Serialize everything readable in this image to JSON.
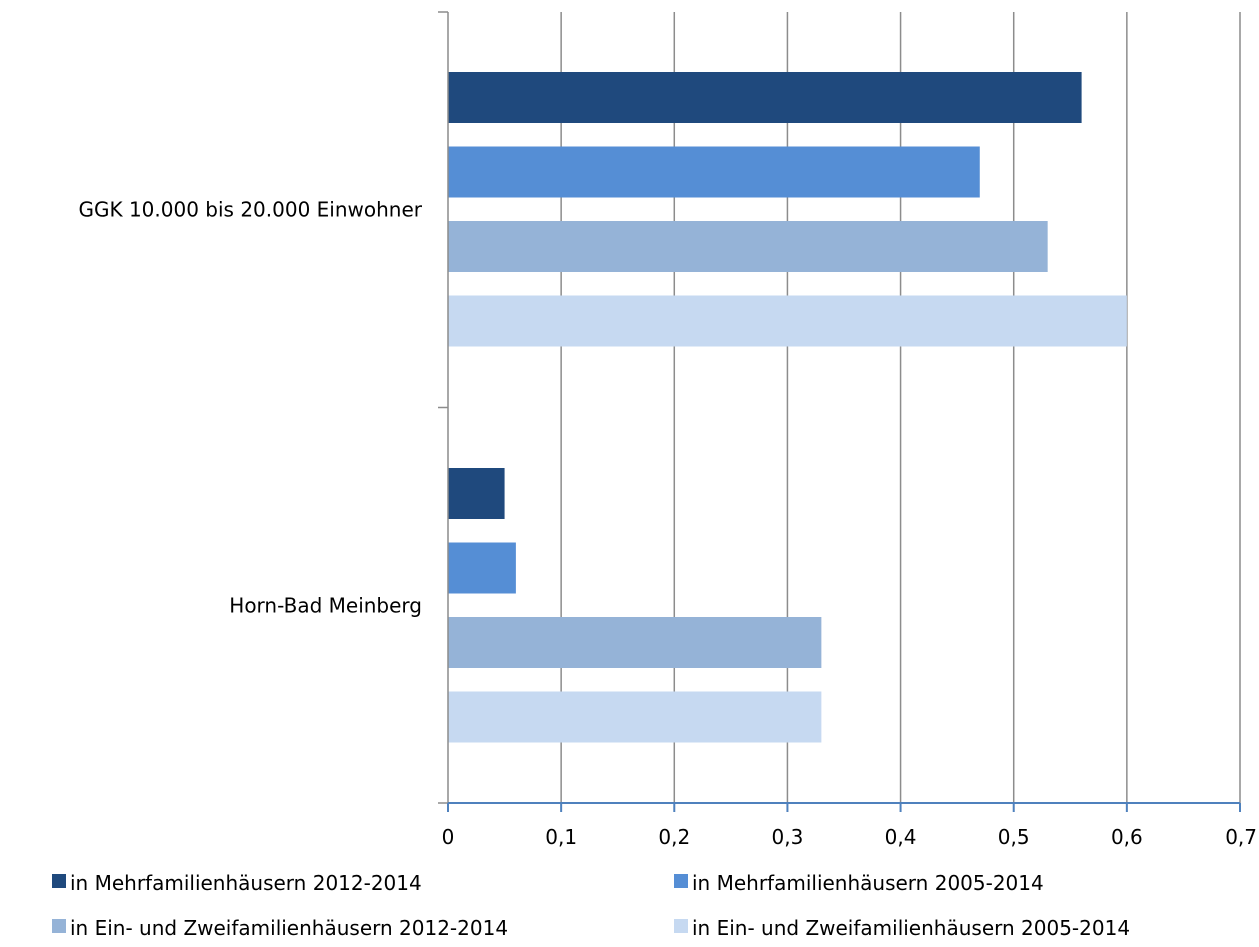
{
  "chart_data": {
    "type": "bar",
    "orientation": "horizontal",
    "categories": [
      "GGK 10.000 bis 20.000 Einwohner",
      "Horn-Bad Meinberg"
    ],
    "series": [
      {
        "name": "in Mehrfamilienhäusern 2012-2014",
        "values": [
          0.56,
          0.05
        ]
      },
      {
        "name": "in Mehrfamilienhäusern 2005-2014",
        "values": [
          0.47,
          0.06
        ]
      },
      {
        "name": "in Ein- und Zweifamilienhäusern 2012-2014",
        "values": [
          0.53,
          0.33
        ]
      },
      {
        "name": "in Ein- und Zweifamilienhäusern 2005-2014",
        "values": [
          0.6,
          0.33
        ]
      }
    ],
    "xlim": [
      0,
      0.7
    ],
    "xticks": [
      0,
      0.1,
      0.2,
      0.3,
      0.4,
      0.5,
      0.6,
      0.7
    ],
    "xtick_labels": [
      "0",
      "0,1",
      "0,2",
      "0,3",
      "0,4",
      "0,5",
      "0,6",
      "0,7"
    ],
    "grid": "vertical",
    "legend_position": "bottom",
    "colors": [
      "#1f497d",
      "#558ed5",
      "#95b3d7",
      "#c6d9f1"
    ],
    "title": "",
    "xlabel": "",
    "ylabel": ""
  }
}
